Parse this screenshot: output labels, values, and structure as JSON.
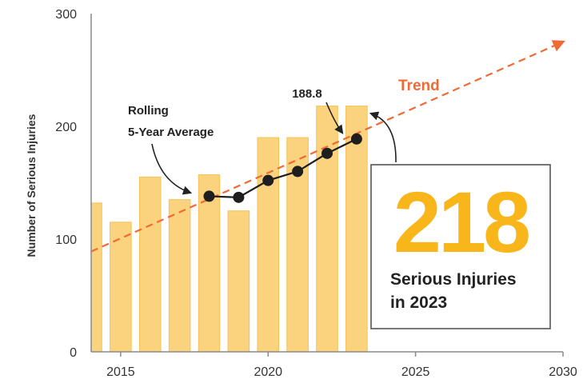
{
  "chart_data": {
    "type": "bar",
    "ylabel": "Number of Serious Injuries",
    "xlabel": "",
    "xlim": [
      2014,
      2030
    ],
    "ylim": [
      0,
      300
    ],
    "yticks": [
      0,
      100,
      200,
      300
    ],
    "xticks": [
      2015,
      2020,
      2025,
      2030
    ],
    "grid": false,
    "bars": {
      "years": [
        2014,
        2015,
        2016,
        2017,
        2018,
        2019,
        2020,
        2021,
        2022,
        2023
      ],
      "values": [
        132,
        115,
        155,
        135,
        157,
        125,
        190,
        190,
        218,
        218
      ]
    },
    "series": [
      {
        "type": "line",
        "years": [
          2018,
          2019,
          2020,
          2021,
          2022,
          2023
        ],
        "values": [
          138,
          137,
          152,
          160,
          176,
          188.8
        ]
      }
    ],
    "trend": {
      "from": [
        2014,
        89
      ],
      "to": [
        2030,
        275
      ]
    },
    "annotations": {
      "rolling_line1": "Rolling",
      "rolling_line2": "5-Year Average",
      "value_label": "188.8",
      "trend_label": "Trend"
    },
    "callout": {
      "number": "218",
      "line1": "Serious Injuries",
      "line2": "in 2023"
    },
    "colors": {
      "bar_fill": "#fbd27d",
      "bar_stroke": "#f6c152",
      "line": "#1e1e1e",
      "trend": "#ef6a35",
      "axis": "#8a8a8a",
      "big_number": "#f8b61a",
      "callout_border": "#555555"
    }
  }
}
